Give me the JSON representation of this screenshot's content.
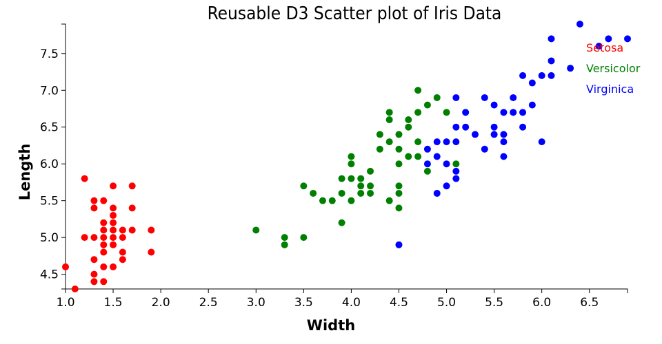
{
  "chart_data": {
    "type": "scatter",
    "title": "Reusable D3 Scatter plot of Iris Data",
    "xlabel": "Width",
    "ylabel": "Length",
    "xlim": [
      1.0,
      6.9
    ],
    "ylim": [
      4.3,
      7.9
    ],
    "x_ticks": [
      "1.0",
      "1.5",
      "2.0",
      "2.5",
      "3.0",
      "3.5",
      "4.0",
      "4.5",
      "5.0",
      "5.5",
      "6.0",
      "6.5"
    ],
    "y_ticks": [
      "4.5",
      "5.0",
      "5.5",
      "6.0",
      "6.5",
      "7.0",
      "7.5"
    ],
    "legend_position": "top-right",
    "grid": false,
    "series": [
      {
        "name": "Setosa",
        "color": "#ff0000",
        "points": [
          [
            1.0,
            4.6
          ],
          [
            1.1,
            4.3
          ],
          [
            1.2,
            5.8
          ],
          [
            1.2,
            5.0
          ],
          [
            1.3,
            5.5
          ],
          [
            1.3,
            5.4
          ],
          [
            1.3,
            5.0
          ],
          [
            1.3,
            4.7
          ],
          [
            1.3,
            4.5
          ],
          [
            1.3,
            4.4
          ],
          [
            1.4,
            5.5
          ],
          [
            1.4,
            5.2
          ],
          [
            1.4,
            5.1
          ],
          [
            1.4,
            5.0
          ],
          [
            1.4,
            4.9
          ],
          [
            1.4,
            4.8
          ],
          [
            1.4,
            4.6
          ],
          [
            1.4,
            4.4
          ],
          [
            1.5,
            5.7
          ],
          [
            1.5,
            5.4
          ],
          [
            1.5,
            5.3
          ],
          [
            1.5,
            5.2
          ],
          [
            1.5,
            5.1
          ],
          [
            1.5,
            5.0
          ],
          [
            1.5,
            4.9
          ],
          [
            1.5,
            4.6
          ],
          [
            1.6,
            5.1
          ],
          [
            1.6,
            5.0
          ],
          [
            1.6,
            4.8
          ],
          [
            1.6,
            4.7
          ],
          [
            1.7,
            5.7
          ],
          [
            1.7,
            5.4
          ],
          [
            1.7,
            5.1
          ],
          [
            1.9,
            5.1
          ],
          [
            1.9,
            4.8
          ]
        ]
      },
      {
        "name": "Versicolor",
        "color": "#008000",
        "points": [
          [
            3.0,
            5.1
          ],
          [
            3.3,
            5.0
          ],
          [
            3.3,
            4.9
          ],
          [
            3.5,
            5.7
          ],
          [
            3.5,
            5.0
          ],
          [
            3.6,
            5.6
          ],
          [
            3.7,
            5.5
          ],
          [
            3.8,
            5.5
          ],
          [
            3.9,
            5.8
          ],
          [
            3.9,
            5.6
          ],
          [
            3.9,
            5.2
          ],
          [
            4.0,
            6.1
          ],
          [
            4.0,
            6.0
          ],
          [
            4.0,
            5.8
          ],
          [
            4.0,
            5.5
          ],
          [
            4.1,
            5.8
          ],
          [
            4.1,
            5.7
          ],
          [
            4.1,
            5.6
          ],
          [
            4.2,
            5.9
          ],
          [
            4.2,
            5.7
          ],
          [
            4.2,
            5.6
          ],
          [
            4.3,
            6.4
          ],
          [
            4.3,
            6.2
          ],
          [
            4.4,
            6.7
          ],
          [
            4.4,
            6.6
          ],
          [
            4.4,
            6.3
          ],
          [
            4.4,
            5.5
          ],
          [
            4.5,
            6.4
          ],
          [
            4.5,
            6.2
          ],
          [
            4.5,
            6.0
          ],
          [
            4.5,
            5.7
          ],
          [
            4.5,
            5.6
          ],
          [
            4.5,
            5.4
          ],
          [
            4.6,
            6.6
          ],
          [
            4.6,
            6.5
          ],
          [
            4.6,
            6.1
          ],
          [
            4.7,
            7.0
          ],
          [
            4.7,
            6.7
          ],
          [
            4.7,
            6.3
          ],
          [
            4.7,
            6.1
          ],
          [
            4.8,
            6.8
          ],
          [
            4.8,
            5.9
          ],
          [
            4.9,
            6.9
          ],
          [
            5.0,
            6.7
          ],
          [
            5.1,
            6.0
          ]
        ]
      },
      {
        "name": "Virginica",
        "color": "#0000ff",
        "points": [
          [
            4.5,
            4.9
          ],
          [
            4.8,
            6.2
          ],
          [
            4.8,
            6.0
          ],
          [
            4.9,
            6.3
          ],
          [
            4.9,
            6.1
          ],
          [
            4.9,
            5.6
          ],
          [
            5.0,
            6.3
          ],
          [
            5.0,
            6.0
          ],
          [
            5.0,
            5.7
          ],
          [
            5.1,
            6.9
          ],
          [
            5.1,
            6.5
          ],
          [
            5.1,
            6.3
          ],
          [
            5.1,
            5.9
          ],
          [
            5.1,
            5.8
          ],
          [
            5.2,
            6.7
          ],
          [
            5.2,
            6.5
          ],
          [
            5.3,
            6.4
          ],
          [
            5.4,
            6.9
          ],
          [
            5.4,
            6.2
          ],
          [
            5.5,
            6.8
          ],
          [
            5.5,
            6.5
          ],
          [
            5.5,
            6.4
          ],
          [
            5.6,
            6.7
          ],
          [
            5.6,
            6.4
          ],
          [
            5.6,
            6.3
          ],
          [
            5.6,
            6.1
          ],
          [
            5.7,
            6.9
          ],
          [
            5.7,
            6.7
          ],
          [
            5.8,
            7.2
          ],
          [
            5.8,
            6.7
          ],
          [
            5.8,
            6.5
          ],
          [
            5.9,
            7.1
          ],
          [
            5.9,
            6.8
          ],
          [
            6.0,
            7.2
          ],
          [
            6.0,
            6.3
          ],
          [
            6.1,
            7.7
          ],
          [
            6.1,
            7.4
          ],
          [
            6.1,
            7.2
          ],
          [
            6.3,
            7.3
          ],
          [
            6.4,
            7.9
          ],
          [
            6.6,
            7.6
          ],
          [
            6.7,
            7.7
          ],
          [
            6.9,
            7.7
          ]
        ]
      }
    ]
  }
}
